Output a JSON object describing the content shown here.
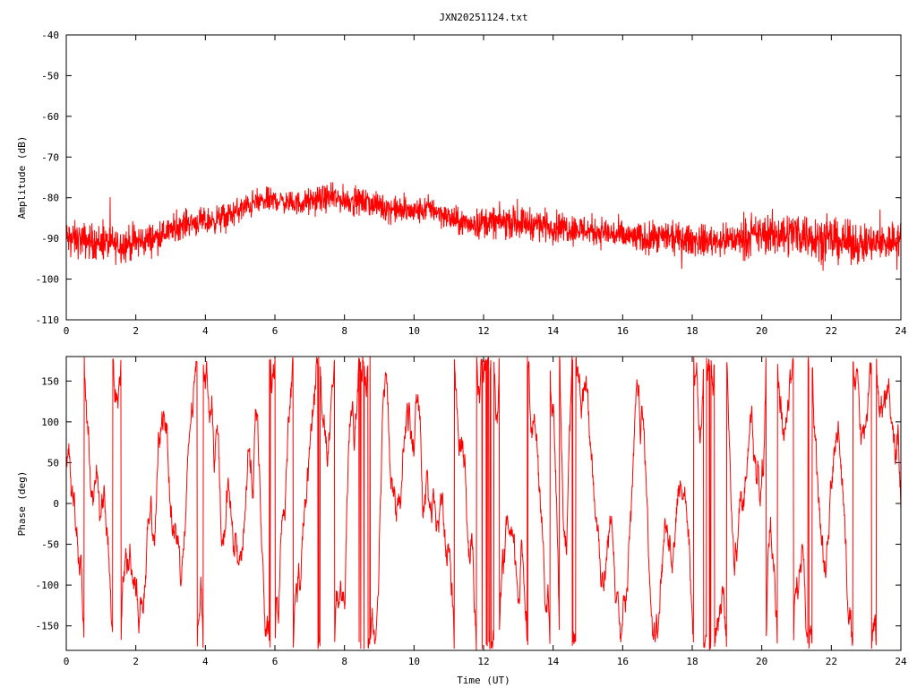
{
  "chart_data": [
    {
      "type": "line",
      "title": "JXN20251124.txt",
      "xlabel": "",
      "ylabel": "Amplitude (dB)",
      "xlim": [
        0,
        24
      ],
      "ylim": [
        -110,
        -40
      ],
      "x_ticks": [
        "0",
        "2",
        "4",
        "6",
        "8",
        "10",
        "12",
        "14",
        "16",
        "18",
        "20",
        "22",
        "24"
      ],
      "y_ticks": [
        "-40",
        "-50",
        "-60",
        "-70",
        "-80",
        "-90",
        "-100",
        "-110"
      ],
      "series_color": "#ff0000",
      "series": [
        {
          "name": "",
          "x": [
            0,
            0.5,
            1,
            1.5,
            2,
            2.5,
            3,
            3.5,
            4,
            4.5,
            5,
            5.5,
            6,
            6.5,
            7,
            7.5,
            8,
            8.5,
            9,
            9.5,
            10,
            10.5,
            11,
            11.5,
            12,
            12.5,
            13,
            13.5,
            14,
            14.5,
            15,
            15.5,
            16,
            16.5,
            17,
            17.5,
            18,
            18.5,
            19,
            19.5,
            20,
            20.5,
            21,
            21.5,
            22,
            22.5,
            23,
            23.5,
            24
          ],
          "y": [
            -90,
            -90.5,
            -91,
            -91.5,
            -91,
            -90,
            -88,
            -86,
            -86,
            -85,
            -83,
            -81,
            -80.5,
            -81.5,
            -81,
            -80,
            -80.5,
            -81,
            -82,
            -83,
            -83.5,
            -82.5,
            -85,
            -86.5,
            -86,
            -86,
            -86,
            -86.5,
            -87,
            -87.5,
            -88,
            -88.5,
            -89.5,
            -90,
            -90,
            -90,
            -90.5,
            -90.5,
            -90.5,
            -90,
            -89,
            -89,
            -88.5,
            -89.5,
            -90.5,
            -91,
            -91.5,
            -91,
            -90
          ],
          "spread": [
            4,
            4,
            4,
            4,
            4,
            3.5,
            3,
            3,
            3,
            3,
            3,
            3,
            2.5,
            2.5,
            3,
            3,
            3,
            3,
            3,
            3,
            3,
            3,
            3,
            3,
            3.5,
            3.5,
            3.5,
            3.5,
            3.5,
            3.5,
            3.5,
            3.5,
            3.5,
            3.5,
            3.5,
            3.5,
            3.5,
            3.5,
            3.5,
            4,
            4.5,
            5,
            5,
            5,
            5,
            4.5,
            4.5,
            4.5,
            4.5
          ]
        }
      ]
    },
    {
      "type": "line",
      "title": "",
      "xlabel": "Time (UT)",
      "ylabel": "Phase (deg)",
      "xlim": [
        0,
        24
      ],
      "ylim": [
        -180,
        180
      ],
      "x_ticks": [
        "0",
        "2",
        "4",
        "6",
        "8",
        "10",
        "12",
        "14",
        "16",
        "18",
        "20",
        "22",
        "24"
      ],
      "y_ticks": [
        "150",
        "100",
        "50",
        "0",
        "-50",
        "-100",
        "-150"
      ],
      "y_tick_values": [
        150,
        100,
        50,
        0,
        -50,
        -100,
        -150
      ],
      "series_color": "#ff0000",
      "series": [
        {
          "name": "",
          "description_range": [
            -180,
            180
          ],
          "wrap": true
        }
      ]
    }
  ]
}
